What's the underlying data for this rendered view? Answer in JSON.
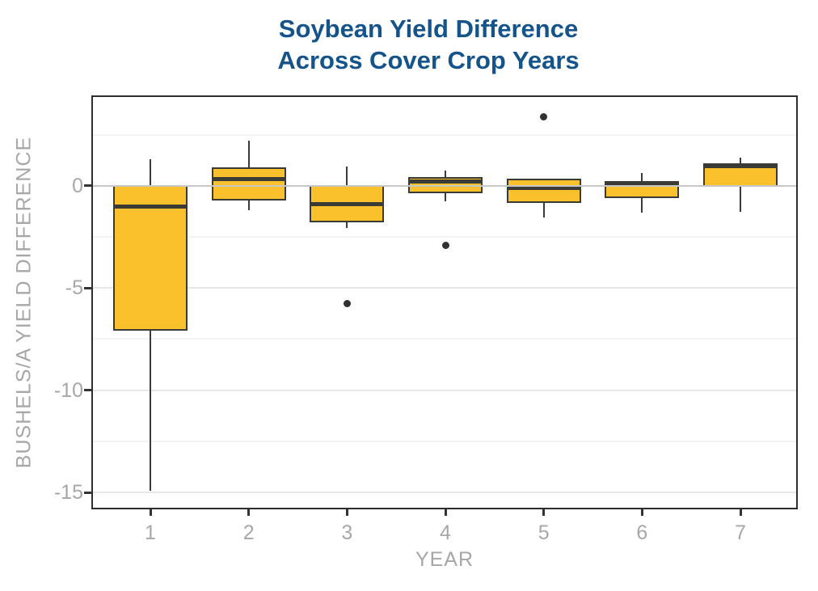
{
  "title": {
    "line1": "Soybean Yield Difference",
    "line2": "Across Cover Crop Years"
  },
  "colors": {
    "title_text": "#15538B",
    "axis_text": "#A7A7A7",
    "box_fill": "#FBC12D",
    "box_stroke": "#3B3B35",
    "median_stroke": "#3B3B35",
    "whisker_stroke": "#3B3B35",
    "outlier_fill": "#313131",
    "major_gridline": "#E7E7E7",
    "minor_gridline": "#F3F3F3",
    "zero_line": "#C7C7C7",
    "panel_border": "#2E2E2E",
    "tick_mark": "#333333"
  },
  "chart_data": {
    "type": "boxplot",
    "title": "Soybean Yield Difference Across Cover Crop Years",
    "xlabel": "YEAR",
    "ylabel": "BUSHELS/A YIELD DIFFERENCE",
    "categories": [
      "1",
      "2",
      "3",
      "4",
      "5",
      "6",
      "7"
    ],
    "ylim": [
      -15.75,
      4.35
    ],
    "grid": "horizontal-only",
    "legend": "none",
    "y_tick_values": [
      0,
      -5,
      -10,
      -15
    ],
    "y_tick_labels": [
      "0",
      "-5",
      "-10",
      "-15"
    ],
    "y_major_gridlines": [
      0,
      -5,
      -10,
      -15
    ],
    "y_minor_gridlines": [
      2.5,
      -2.5,
      -7.5,
      -12.5
    ],
    "zero_reference_line": 0,
    "series": [
      {
        "category": "1",
        "whisker_low": -14.9,
        "q1": -7.1,
        "median": -1.0,
        "q3": 0.05,
        "whisker_high": 1.3,
        "outliers": []
      },
      {
        "category": "2",
        "whisker_low": -1.2,
        "q1": -0.7,
        "median": 0.35,
        "q3": 0.9,
        "whisker_high": 2.2,
        "outliers": []
      },
      {
        "category": "3",
        "whisker_low": -2.05,
        "q1": -1.8,
        "median": -0.9,
        "q3": 0.05,
        "whisker_high": 0.95,
        "outliers": [
          -5.75
        ]
      },
      {
        "category": "4",
        "whisker_low": -0.75,
        "q1": -0.35,
        "median": 0.2,
        "q3": 0.45,
        "whisker_high": 0.75,
        "outliers": [
          -2.9
        ]
      },
      {
        "category": "5",
        "whisker_low": -1.55,
        "q1": -0.85,
        "median": -0.1,
        "q3": 0.35,
        "whisker_high": 0.35,
        "outliers": [
          3.4
        ]
      },
      {
        "category": "6",
        "whisker_low": -1.3,
        "q1": -0.6,
        "median": 0.05,
        "q3": 0.25,
        "whisker_high": 0.65,
        "outliers": []
      },
      {
        "category": "7",
        "whisker_low": -1.25,
        "q1": -0.05,
        "median": 0.95,
        "q3": 1.1,
        "whisker_high": 1.4,
        "outliers": []
      }
    ]
  }
}
